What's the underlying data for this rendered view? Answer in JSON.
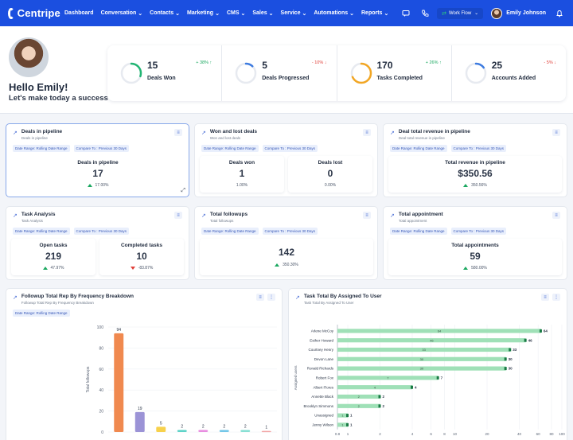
{
  "topbar": {
    "logo": "Centripe",
    "nav": [
      "Dashboard",
      "Conversation",
      "Contacts",
      "Marketing",
      "CMS",
      "Sales",
      "Service",
      "Automations",
      "Reports"
    ],
    "nav_dropdown": [
      false,
      true,
      true,
      true,
      true,
      true,
      true,
      true,
      true
    ],
    "workflow_label": "Work Flow",
    "user_name": "Emily Johnson"
  },
  "hello": {
    "title": "Hello Emily!",
    "subtitle": "Let's make today a success"
  },
  "stats": [
    {
      "value": "15",
      "label": "Deals Won",
      "change": "+ 38% ↑",
      "dir": "up",
      "color": "#22b573",
      "pct": 0.3
    },
    {
      "value": "5",
      "label": "Deals Progressed",
      "change": "- 10% ↓",
      "dir": "down",
      "color": "#3d7be0",
      "pct": 0.12
    },
    {
      "value": "170",
      "label": "Tasks Completed",
      "change": "+ 26% ↑",
      "dir": "up",
      "color": "#f2a623",
      "pct": 0.68
    },
    {
      "value": "25",
      "label": "Accounts Added",
      "change": "- 5% ↓",
      "dir": "down",
      "color": "#3d7be0",
      "pct": 0.15
    }
  ],
  "chips": {
    "date_range": "Date Range: Rolling Date Range",
    "compare": "Compare To : Previous 30 Days"
  },
  "cards": {
    "deals_pipeline": {
      "title": "Deals in pipeline",
      "sub": "Deals in pipeline",
      "metric_label": "Deals in pipeline",
      "value": "17",
      "change": "17.00%"
    },
    "won_lost": {
      "title": "Won and lost deals",
      "sub": "Won and lost deals",
      "won": {
        "label": "Deals won",
        "value": "1",
        "change": "1.00%"
      },
      "lost": {
        "label": "Deals lost",
        "value": "0",
        "change": "0.00%"
      }
    },
    "revenue": {
      "title": "Deal total revenue in pipeline",
      "sub": "Deal total revenue in pipeline",
      "metric_label": "Total revenue in pipeline",
      "value": "$350.56",
      "change": "350.56%"
    },
    "task_analysis": {
      "title": "Task Analysis",
      "sub": "Task Analysis",
      "open": {
        "label": "Open tasks",
        "value": "219",
        "change": "47.97%"
      },
      "completed": {
        "label": "Completed tasks",
        "value": "10",
        "change": "-83.87%"
      }
    },
    "followups": {
      "title": "Total followups",
      "sub": "Total followups",
      "value": "142",
      "change": "350.30%"
    },
    "appointment": {
      "title": "Total appointment",
      "sub": "Total appointment",
      "metric_label": "Total appointments",
      "value": "59",
      "change": "580.00%"
    },
    "followup_chart": {
      "title": "Followup Total Rep By Frequency Breakdown",
      "sub": "Followup Total Rep By Frequency Breakdown"
    },
    "task_chart": {
      "title": "Task Total By Assigned To User",
      "sub": "Task Total By Assigned To User"
    }
  },
  "chart_data": [
    {
      "type": "bar",
      "ylabel": "Total followups",
      "ylim": [
        0,
        100
      ],
      "yticks": [
        0,
        20,
        40,
        60,
        80,
        100
      ],
      "values": [
        94,
        19,
        5,
        2,
        2,
        2,
        2,
        1
      ],
      "colors": [
        "#f0894f",
        "#9b93d6",
        "#f7d14c",
        "#5ed3c8",
        "#e88ee0",
        "#74c7e8",
        "#89e0d4",
        "#f2a3a3"
      ]
    },
    {
      "type": "bar",
      "orientation": "horizontal",
      "scale": "log",
      "ylabel": "Assigned users",
      "categories": [
        "Arlene McCoy",
        "Esther Howard",
        "Courtney Henry",
        "Devon Lane",
        "Ronald Richards",
        "Robert Fox",
        "Albert Flores",
        "Annette Black",
        "Brooklyn Simmons",
        "Unassigned",
        "Jenny Wilson"
      ],
      "values": [
        64,
        46,
        33,
        30,
        30,
        7,
        4,
        2,
        2,
        1,
        1
      ],
      "xticks": [
        "0.8",
        "1",
        "2",
        "4",
        "6",
        "8",
        "10",
        "20",
        "40",
        "60",
        "80",
        "100"
      ]
    }
  ]
}
